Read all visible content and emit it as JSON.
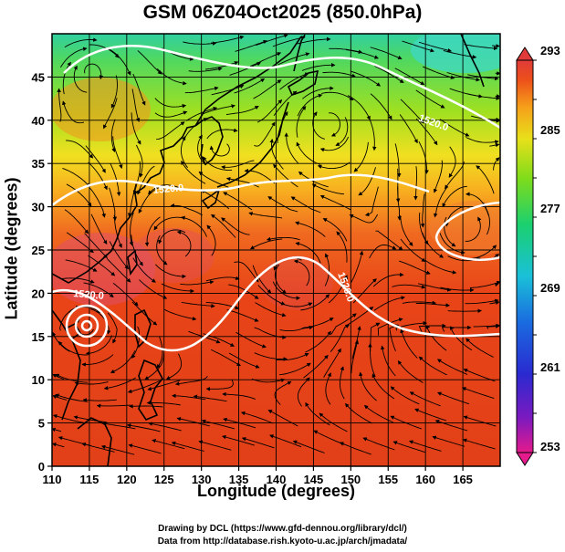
{
  "title": "GSM 06Z04Oct2025 (850.0hPa)",
  "x_axis": {
    "label": "Longitude (degrees)",
    "ticks": [
      "110",
      "115",
      "120",
      "125",
      "130",
      "135",
      "140",
      "145",
      "150",
      "155",
      "160",
      "165"
    ],
    "range": [
      110,
      170
    ]
  },
  "y_axis": {
    "label": "Latitude  (degrees)",
    "ticks": [
      "0",
      "5",
      "10",
      "15",
      "20",
      "25",
      "30",
      "35",
      "40",
      "45"
    ],
    "range": [
      0,
      50
    ]
  },
  "colorbar": {
    "labels": [
      "293",
      "285",
      "277",
      "269",
      "261",
      "253"
    ],
    "range": [
      253,
      293
    ],
    "colors": [
      "#e51a8c",
      "#6a1ab2",
      "#2a2ad0",
      "#1a8ae0",
      "#1ad0d0",
      "#1ad060",
      "#5ad61a",
      "#c8e01a",
      "#f0c81a",
      "#f08a1a",
      "#e8401a",
      "#e03a3a"
    ]
  },
  "contours": [
    {
      "label": "1520.0"
    },
    {
      "label": "1520.0"
    },
    {
      "label": "1520.0"
    },
    {
      "label": "1520.0"
    }
  ],
  "footer": {
    "line1": "Drawing by DCL (https://www.gfd-dennou.org/library/dcl/)",
    "line2": "Data from http://database.rish.kyoto-u.ac.jp/arch/jmadata/"
  }
}
